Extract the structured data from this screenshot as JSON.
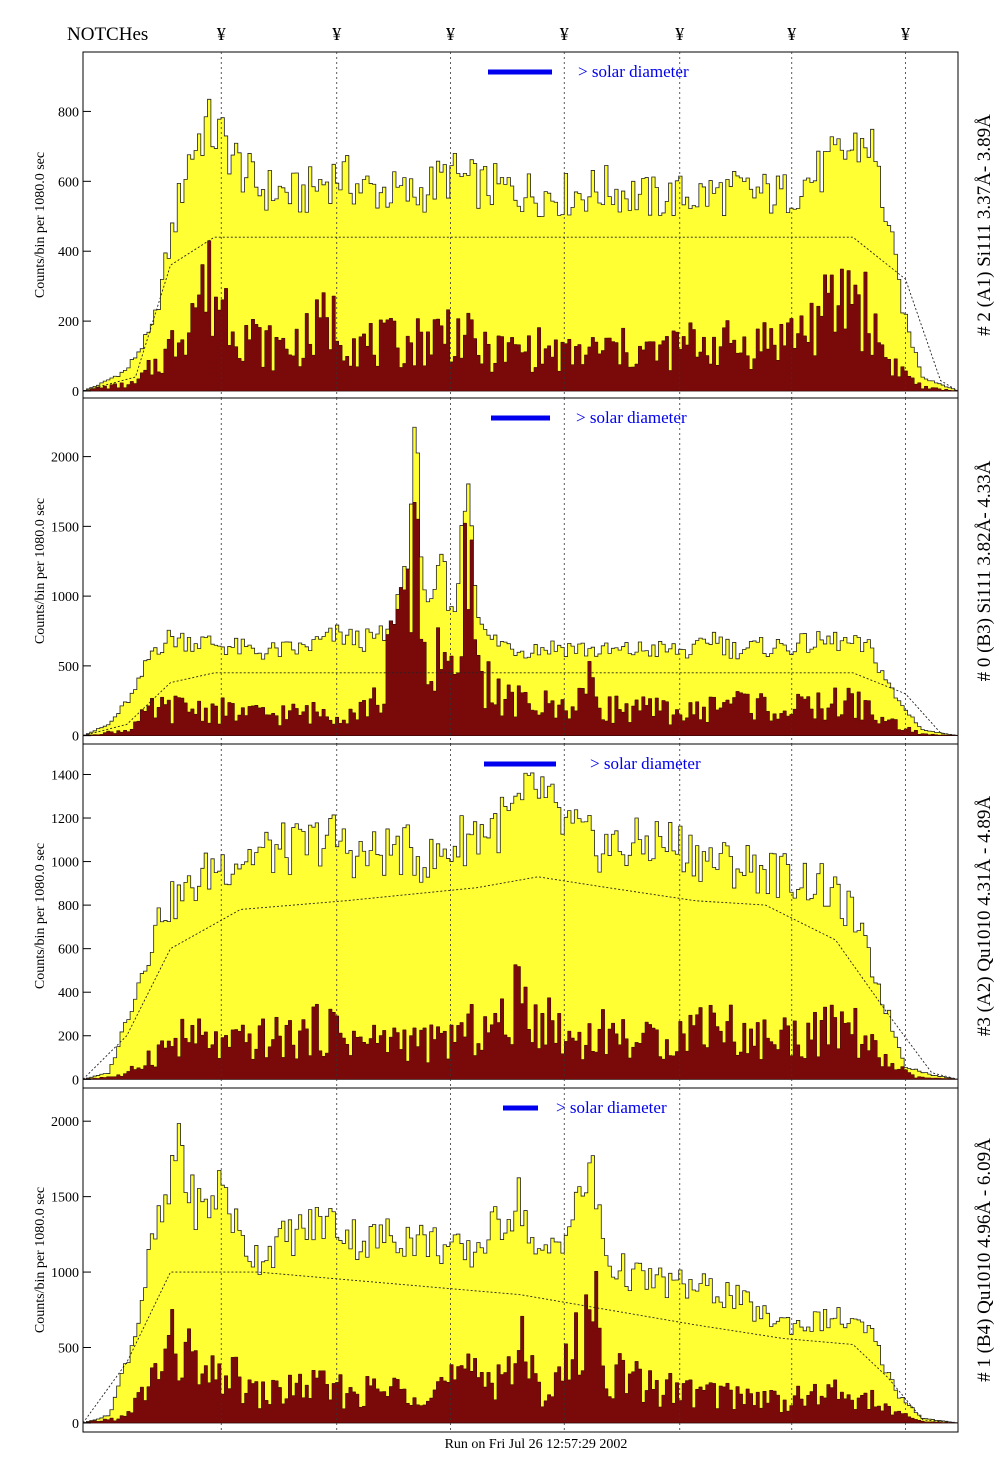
{
  "header": {
    "notches_label": "NOTCHes",
    "notch_symbol": "¥"
  },
  "footer": {
    "run_text": "Run on Fri Jul 26 12:57:29 2002"
  },
  "colors": {
    "envelope": "#ffff33",
    "detail": "#7a0a0a",
    "marker": "#0000ee",
    "frame": "#000000"
  },
  "chart_data": [
    {
      "type": "area",
      "channel_label": "# 2 (A1) Si111  3.37Å- 3.89Å",
      "ylabel": "Counts/bin per   1080.0 sec",
      "ylim": [
        -20,
        970
      ],
      "yticks": [
        0,
        200,
        400,
        600,
        800
      ],
      "legend_text": "> solar diameter",
      "xlim": [
        0,
        1
      ],
      "notches": [
        0.158,
        0.29,
        0.42,
        0.55,
        0.682,
        0.81,
        0.94
      ],
      "series": {
        "envelope": [
          [
            0,
            0
          ],
          [
            0.02,
            20
          ],
          [
            0.05,
            60
          ],
          [
            0.08,
            180
          ],
          [
            0.1,
            430
          ],
          [
            0.12,
            660
          ],
          [
            0.14,
            760
          ],
          [
            0.16,
            720
          ],
          [
            0.18,
            640
          ],
          [
            0.2,
            580
          ],
          [
            0.25,
            560
          ],
          [
            0.29,
            620
          ],
          [
            0.32,
            580
          ],
          [
            0.38,
            560
          ],
          [
            0.42,
            620
          ],
          [
            0.45,
            590
          ],
          [
            0.5,
            570
          ],
          [
            0.55,
            560
          ],
          [
            0.6,
            580
          ],
          [
            0.65,
            550
          ],
          [
            0.7,
            560
          ],
          [
            0.75,
            570
          ],
          [
            0.8,
            560
          ],
          [
            0.84,
            620
          ],
          [
            0.87,
            680
          ],
          [
            0.9,
            720
          ],
          [
            0.92,
            480
          ],
          [
            0.94,
            200
          ],
          [
            0.96,
            40
          ],
          [
            1,
            0
          ]
        ],
        "detail": [
          [
            0,
            0
          ],
          [
            0.02,
            10
          ],
          [
            0.06,
            20
          ],
          [
            0.1,
            120
          ],
          [
            0.12,
            230
          ],
          [
            0.14,
            300
          ],
          [
            0.16,
            260
          ],
          [
            0.18,
            190
          ],
          [
            0.2,
            140
          ],
          [
            0.22,
            120
          ],
          [
            0.26,
            150
          ],
          [
            0.28,
            210
          ],
          [
            0.32,
            130
          ],
          [
            0.38,
            140
          ],
          [
            0.42,
            180
          ],
          [
            0.46,
            110
          ],
          [
            0.52,
            120
          ],
          [
            0.55,
            100
          ],
          [
            0.6,
            120
          ],
          [
            0.66,
            110
          ],
          [
            0.7,
            140
          ],
          [
            0.76,
            130
          ],
          [
            0.82,
            170
          ],
          [
            0.86,
            240
          ],
          [
            0.88,
            300
          ],
          [
            0.9,
            200
          ],
          [
            0.92,
            90
          ],
          [
            0.96,
            10
          ],
          [
            1,
            0
          ]
        ],
        "baseline": [
          [
            0,
            0
          ],
          [
            0.06,
            40
          ],
          [
            0.1,
            360
          ],
          [
            0.15,
            440
          ],
          [
            0.5,
            440
          ],
          [
            0.88,
            440
          ],
          [
            0.94,
            320
          ],
          [
            0.98,
            30
          ],
          [
            1,
            0
          ]
        ]
      }
    },
    {
      "type": "area",
      "channel_label": "# 0 (B3) Si111  3.82Å- 4.33Å",
      "ylabel": "Counts/bin per   1080.0 sec",
      "ylim": [
        -60,
        2420
      ],
      "yticks": [
        0,
        500,
        1000,
        1500,
        2000
      ],
      "legend_text": "> solar diameter",
      "xlim": [
        0,
        1
      ],
      "notches": [
        0.158,
        0.29,
        0.42,
        0.55,
        0.682,
        0.81,
        0.94
      ],
      "series": {
        "envelope": [
          [
            0,
            0
          ],
          [
            0.03,
            80
          ],
          [
            0.06,
            320
          ],
          [
            0.08,
            620
          ],
          [
            0.1,
            700
          ],
          [
            0.15,
            660
          ],
          [
            0.2,
            600
          ],
          [
            0.25,
            620
          ],
          [
            0.29,
            720
          ],
          [
            0.32,
            680
          ],
          [
            0.35,
            720
          ],
          [
            0.37,
            1250
          ],
          [
            0.38,
            2100
          ],
          [
            0.39,
            1100
          ],
          [
            0.4,
            850
          ],
          [
            0.41,
            1300
          ],
          [
            0.42,
            800
          ],
          [
            0.43,
            1200
          ],
          [
            0.44,
            1920
          ],
          [
            0.45,
            1000
          ],
          [
            0.46,
            700
          ],
          [
            0.5,
            620
          ],
          [
            0.55,
            640
          ],
          [
            0.6,
            600
          ],
          [
            0.65,
            620
          ],
          [
            0.7,
            600
          ],
          [
            0.72,
            720
          ],
          [
            0.74,
            620
          ],
          [
            0.8,
            640
          ],
          [
            0.86,
            680
          ],
          [
            0.9,
            620
          ],
          [
            0.93,
            260
          ],
          [
            0.96,
            40
          ],
          [
            1,
            0
          ]
        ],
        "detail": [
          [
            0,
            0
          ],
          [
            0.05,
            40
          ],
          [
            0.08,
            180
          ],
          [
            0.12,
            200
          ],
          [
            0.2,
            150
          ],
          [
            0.3,
            170
          ],
          [
            0.34,
            250
          ],
          [
            0.36,
            900
          ],
          [
            0.38,
            1650
          ],
          [
            0.39,
            600
          ],
          [
            0.4,
            350
          ],
          [
            0.41,
            800
          ],
          [
            0.42,
            400
          ],
          [
            0.43,
            300
          ],
          [
            0.44,
            1450
          ],
          [
            0.45,
            500
          ],
          [
            0.48,
            250
          ],
          [
            0.55,
            200
          ],
          [
            0.58,
            350
          ],
          [
            0.6,
            200
          ],
          [
            0.7,
            160
          ],
          [
            0.74,
            260
          ],
          [
            0.8,
            180
          ],
          [
            0.88,
            240
          ],
          [
            0.92,
            100
          ],
          [
            0.96,
            10
          ],
          [
            1,
            0
          ]
        ],
        "baseline": [
          [
            0,
            0
          ],
          [
            0.05,
            80
          ],
          [
            0.1,
            380
          ],
          [
            0.15,
            450
          ],
          [
            0.5,
            450
          ],
          [
            0.88,
            450
          ],
          [
            0.94,
            300
          ],
          [
            0.98,
            20
          ],
          [
            1,
            0
          ]
        ]
      }
    },
    {
      "type": "area",
      "channel_label": "#3 (A2) Qu1010  4.31Å - 4.89Å",
      "ylabel": "Counts/bin per   1080.0 sec",
      "ylim": [
        -40,
        1540
      ],
      "yticks": [
        0,
        200,
        400,
        600,
        800,
        1000,
        1200,
        1400
      ],
      "legend_text": "> solar diameter",
      "xlim": [
        0,
        1
      ],
      "notches": [
        0.158,
        0.29,
        0.42,
        0.55,
        0.682,
        0.81,
        0.94
      ],
      "series": {
        "envelope": [
          [
            0,
            0
          ],
          [
            0.03,
            30
          ],
          [
            0.06,
            400
          ],
          [
            0.09,
            780
          ],
          [
            0.12,
            860
          ],
          [
            0.15,
            980
          ],
          [
            0.2,
            1040
          ],
          [
            0.25,
            1060
          ],
          [
            0.28,
            1120
          ],
          [
            0.32,
            1020
          ],
          [
            0.36,
            1060
          ],
          [
            0.4,
            1000
          ],
          [
            0.44,
            1120
          ],
          [
            0.48,
            1180
          ],
          [
            0.5,
            1240
          ],
          [
            0.52,
            1340
          ],
          [
            0.54,
            1200
          ],
          [
            0.58,
            1080
          ],
          [
            0.62,
            1060
          ],
          [
            0.66,
            1100
          ],
          [
            0.7,
            1040
          ],
          [
            0.72,
            1000
          ],
          [
            0.76,
            980
          ],
          [
            0.8,
            940
          ],
          [
            0.84,
            900
          ],
          [
            0.88,
            760
          ],
          [
            0.91,
            420
          ],
          [
            0.94,
            60
          ],
          [
            0.97,
            20
          ],
          [
            1,
            0
          ]
        ],
        "detail": [
          [
            0,
            0
          ],
          [
            0.05,
            20
          ],
          [
            0.08,
            120
          ],
          [
            0.12,
            200
          ],
          [
            0.16,
            150
          ],
          [
            0.2,
            180
          ],
          [
            0.25,
            200
          ],
          [
            0.28,
            240
          ],
          [
            0.32,
            170
          ],
          [
            0.36,
            190
          ],
          [
            0.4,
            160
          ],
          [
            0.44,
            220
          ],
          [
            0.48,
            250
          ],
          [
            0.5,
            380
          ],
          [
            0.52,
            300
          ],
          [
            0.56,
            180
          ],
          [
            0.6,
            220
          ],
          [
            0.64,
            170
          ],
          [
            0.68,
            200
          ],
          [
            0.72,
            290
          ],
          [
            0.76,
            180
          ],
          [
            0.8,
            200
          ],
          [
            0.84,
            210
          ],
          [
            0.88,
            240
          ],
          [
            0.91,
            100
          ],
          [
            0.95,
            10
          ],
          [
            1,
            0
          ]
        ],
        "baseline": [
          [
            0,
            0
          ],
          [
            0.05,
            200
          ],
          [
            0.1,
            600
          ],
          [
            0.18,
            780
          ],
          [
            0.3,
            820
          ],
          [
            0.45,
            880
          ],
          [
            0.52,
            930
          ],
          [
            0.6,
            880
          ],
          [
            0.7,
            820
          ],
          [
            0.78,
            800
          ],
          [
            0.86,
            640
          ],
          [
            0.92,
            300
          ],
          [
            0.97,
            30
          ],
          [
            1,
            0
          ]
        ]
      }
    },
    {
      "type": "area",
      "channel_label": "# 1 (B4) Qu1010 4.96Å - 6.09Å",
      "ylabel": "Counts/bin per   1080.0 sec",
      "ylim": [
        -60,
        2220
      ],
      "yticks": [
        0,
        500,
        1000,
        1500,
        2000
      ],
      "legend_text": "> solar diameter",
      "xlim": [
        0,
        1
      ],
      "notches": [
        0.158,
        0.29,
        0.42,
        0.55,
        0.682,
        0.81,
        0.94
      ],
      "series": {
        "envelope": [
          [
            0,
            0
          ],
          [
            0.03,
            50
          ],
          [
            0.06,
            600
          ],
          [
            0.08,
            1200
          ],
          [
            0.1,
            1500
          ],
          [
            0.11,
            1980
          ],
          [
            0.12,
            1500
          ],
          [
            0.14,
            1400
          ],
          [
            0.16,
            1600
          ],
          [
            0.18,
            1200
          ],
          [
            0.2,
            1100
          ],
          [
            0.24,
            1250
          ],
          [
            0.28,
            1350
          ],
          [
            0.32,
            1200
          ],
          [
            0.36,
            1250
          ],
          [
            0.4,
            1200
          ],
          [
            0.44,
            1100
          ],
          [
            0.48,
            1350
          ],
          [
            0.5,
            1500
          ],
          [
            0.52,
            1050
          ],
          [
            0.56,
            1350
          ],
          [
            0.58,
            1700
          ],
          [
            0.6,
            1050
          ],
          [
            0.64,
            950
          ],
          [
            0.7,
            900
          ],
          [
            0.74,
            850
          ],
          [
            0.78,
            700
          ],
          [
            0.82,
            650
          ],
          [
            0.86,
            700
          ],
          [
            0.9,
            600
          ],
          [
            0.93,
            200
          ],
          [
            0.96,
            30
          ],
          [
            1,
            0
          ]
        ],
        "detail": [
          [
            0,
            0
          ],
          [
            0.05,
            40
          ],
          [
            0.08,
            300
          ],
          [
            0.1,
            500
          ],
          [
            0.12,
            450
          ],
          [
            0.14,
            250
          ],
          [
            0.16,
            350
          ],
          [
            0.2,
            180
          ],
          [
            0.26,
            250
          ],
          [
            0.3,
            200
          ],
          [
            0.36,
            220
          ],
          [
            0.4,
            250
          ],
          [
            0.44,
            300
          ],
          [
            0.48,
            350
          ],
          [
            0.5,
            500
          ],
          [
            0.52,
            200
          ],
          [
            0.56,
            400
          ],
          [
            0.58,
            850
          ],
          [
            0.6,
            350
          ],
          [
            0.64,
            250
          ],
          [
            0.7,
            200
          ],
          [
            0.76,
            180
          ],
          [
            0.8,
            150
          ],
          [
            0.86,
            200
          ],
          [
            0.9,
            150
          ],
          [
            0.93,
            60
          ],
          [
            0.96,
            10
          ],
          [
            1,
            0
          ]
        ],
        "baseline": [
          [
            0,
            0
          ],
          [
            0.05,
            400
          ],
          [
            0.1,
            1000
          ],
          [
            0.2,
            1000
          ],
          [
            0.3,
            950
          ],
          [
            0.4,
            900
          ],
          [
            0.5,
            850
          ],
          [
            0.6,
            750
          ],
          [
            0.7,
            650
          ],
          [
            0.8,
            560
          ],
          [
            0.88,
            520
          ],
          [
            0.92,
            300
          ],
          [
            0.96,
            20
          ],
          [
            1,
            0
          ]
        ]
      }
    }
  ]
}
